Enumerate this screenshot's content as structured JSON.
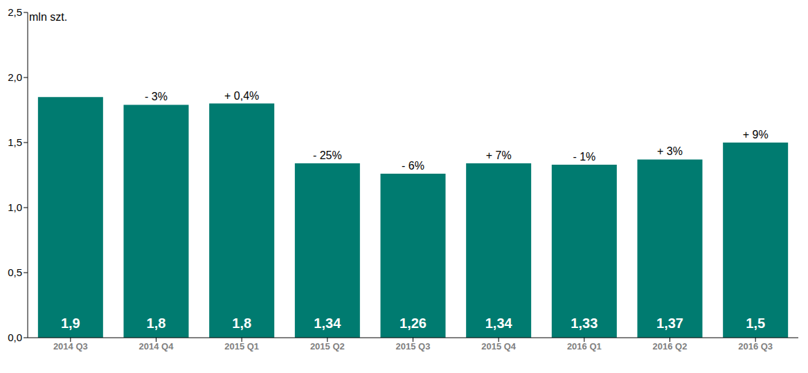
{
  "chart_data": {
    "type": "bar",
    "ylabel": "mln szt.",
    "categories": [
      "2014 Q3",
      "2014 Q4",
      "2015 Q1",
      "2015 Q2",
      "2015 Q3",
      "2015 Q4",
      "2016 Q1",
      "2016 Q2",
      "2016 Q3"
    ],
    "values": [
      1.85,
      1.79,
      1.8,
      1.34,
      1.26,
      1.34,
      1.33,
      1.37,
      1.5
    ],
    "value_labels": [
      "1,9",
      "1,8",
      "1,8",
      "1,34",
      "1,26",
      "1,34",
      "1,33",
      "1,37",
      "1,5"
    ],
    "annotations": [
      null,
      "- 3%",
      "+ 0,4%",
      "- 25%",
      "- 6%",
      "+ 7%",
      "- 1%",
      "+ 3%",
      "+ 9%"
    ],
    "color": "#007b70",
    "ylim": [
      0,
      2.5
    ],
    "yticks": [
      {
        "value": 0,
        "label": "0,0"
      },
      {
        "value": 0.5,
        "label": "0,5"
      },
      {
        "value": 1,
        "label": "1,0"
      },
      {
        "value": 1.5,
        "label": "1,5"
      },
      {
        "value": 2,
        "label": "2,0"
      },
      {
        "value": 2.5,
        "label": "2,5"
      }
    ],
    "grid": false,
    "data_labels": true
  }
}
